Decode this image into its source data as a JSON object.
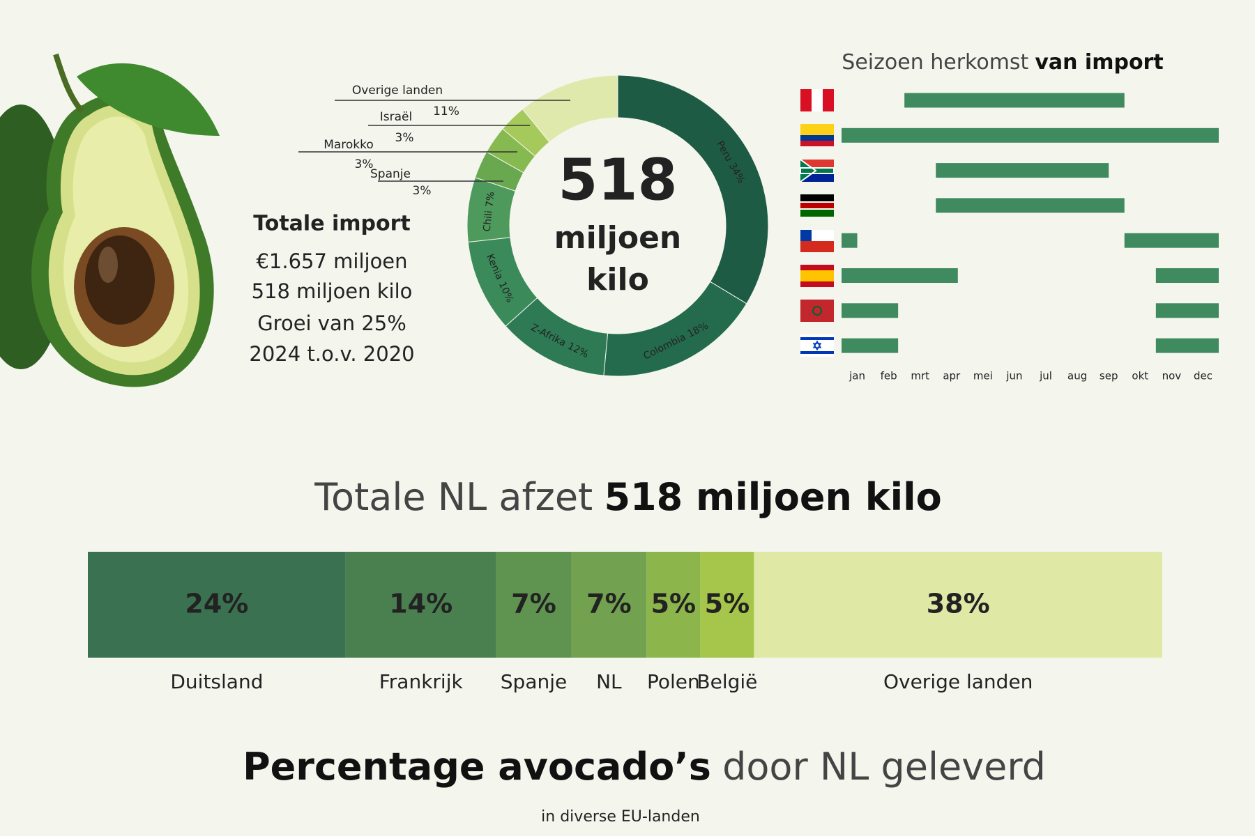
{
  "info": {
    "title": "Totale import",
    "lines": [
      "€1.657 miljoen",
      "518 miljoen kilo",
      "Groei van 25%",
      "2024 t.o.v. 2020"
    ]
  },
  "chart_data": [
    {
      "type": "donut",
      "categories": [
        "Peru",
        "Colombia",
        "Z-Afrika",
        "Kenia",
        "Chili",
        "Spanje",
        "Marokko",
        "Israël",
        "Overige landen"
      ],
      "values": [
        34,
        18,
        12,
        10,
        7,
        3,
        3,
        3,
        11
      ],
      "value_labels": [
        "34%",
        "18%",
        "12%",
        "10%",
        "7%",
        "3%",
        "3%",
        "3%",
        "11%"
      ],
      "colors": [
        "#1e5b44",
        "#246a4d",
        "#2e7a54",
        "#3b8a5a",
        "#4e9a5c",
        "#6aa84f",
        "#86b94f",
        "#a6c95c",
        "#dfe9ab"
      ],
      "center_label": [
        "518",
        "miljoen",
        "kilo"
      ]
    },
    {
      "type": "gantt",
      "title_parts": [
        "Seizoen herkomst",
        "van import"
      ],
      "categories": [
        "jan",
        "feb",
        "mrt",
        "apr",
        "mei",
        "jun",
        "jul",
        "aug",
        "sep",
        "okt",
        "nov",
        "dec"
      ],
      "xlim": [
        0,
        12
      ],
      "color": "#3f8a5f",
      "rows": [
        {
          "spans": [
            [
              2,
              9
            ]
          ]
        },
        {
          "spans": [
            [
              0,
              12
            ]
          ]
        },
        {
          "spans": [
            [
              3,
              8.5
            ]
          ]
        },
        {
          "spans": [
            [
              3,
              9
            ]
          ]
        },
        {
          "spans": [
            [
              0,
              0.5
            ],
            [
              9,
              12
            ]
          ]
        },
        {
          "spans": [
            [
              0,
              3.7
            ],
            [
              10,
              12
            ]
          ]
        },
        {
          "spans": [
            [
              0,
              1.8
            ],
            [
              10,
              12
            ]
          ]
        },
        {
          "spans": [
            [
              0,
              1.8
            ],
            [
              10,
              12
            ]
          ]
        }
      ]
    },
    {
      "type": "stacked_bar",
      "title_parts": [
        "Totale NL afzet",
        "518 miljoen kilo"
      ],
      "categories": [
        "Duitsland",
        "Frankrijk",
        "Spanje",
        "NL",
        "Polen",
        "België",
        "Overige landen"
      ],
      "values": [
        24,
        14,
        7,
        7,
        5,
        5,
        38
      ],
      "value_labels": [
        "24%",
        "14%",
        "7%",
        "7%",
        "5%",
        "5%",
        "38%"
      ],
      "colors": [
        "#3a7150",
        "#4a7f4f",
        "#5f9450",
        "#72a24f",
        "#8cb64c",
        "#a5c64a",
        "#e0e8a6"
      ]
    }
  ],
  "footer": {
    "title_parts": [
      "Percentage avocado’s",
      "door NL geleverd"
    ],
    "subtitle": "in diverse EU-landen"
  }
}
